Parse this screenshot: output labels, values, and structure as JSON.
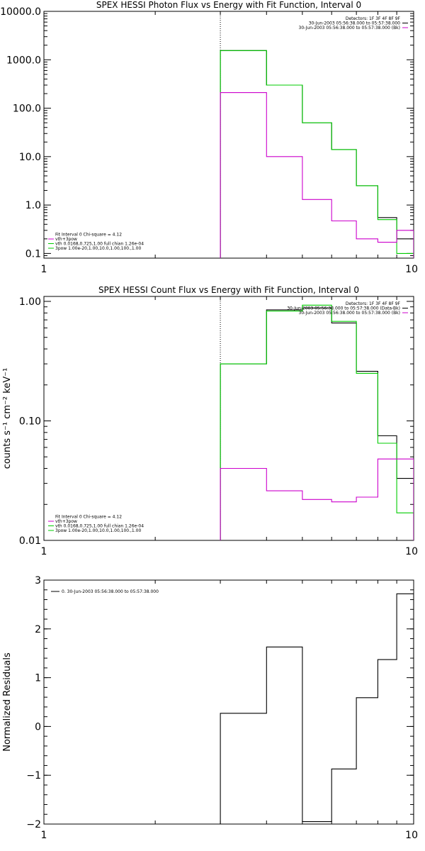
{
  "chart_data": [
    {
      "type": "line",
      "id": "photon",
      "title": "SPEX HESSI Photon Flux vs Energy with Fit Function, Interval 0",
      "xlabel": "",
      "ylabel": "",
      "xscale": "log",
      "yscale": "log",
      "xlim": [
        1,
        10
      ],
      "ylim": [
        0.08,
        10000
      ],
      "xticks": [
        {
          "v": 1,
          "label": "1"
        },
        {
          "v": 10,
          "label": "10"
        }
      ],
      "yticks": [
        {
          "v": 0.1,
          "label": "0.1"
        },
        {
          "v": 1,
          "label": "1.0"
        },
        {
          "v": 10,
          "label": "10.0"
        },
        {
          "v": 100,
          "label": "100.0"
        },
        {
          "v": 1000,
          "label": "1000.0"
        },
        {
          "v": 10000,
          "label": "10000.0"
        }
      ],
      "vline_x": 3,
      "legend_topright": [
        {
          "text": "Detectors: 1F 3F 4F 8F 9F",
          "color": "#000000"
        },
        {
          "text": "30-Jun-2003 05:56:38.000 to 05:57:38.000",
          "color": "#000000"
        },
        {
          "text": "30-Jun-2003 05:56:38.000 to 05:57:38.000 (Bk)",
          "color": "#cc00cc"
        }
      ],
      "legend_bottomleft": [
        {
          "text": "Fit Interval  0    Chi-square = 4.12",
          "color": "#000000"
        },
        {
          "text": "vth+3pow",
          "color": "#cc00cc"
        },
        {
          "text": "vth 0.0168,0.725,1.00  full chian 1.26e-04",
          "color": "#00cc00"
        },
        {
          "text": "3pow 1.00e-20,1.00,10.0,1.00,100.,1.00",
          "color": "#00cc00"
        }
      ],
      "series": [
        {
          "color": "#000000",
          "edges": [
            3,
            4,
            5,
            6,
            7,
            8,
            9,
            10
          ],
          "values": [
            1550,
            300,
            50,
            14,
            2.5,
            0.55,
            0.2
          ]
        },
        {
          "color": "#00cc00",
          "edges": [
            3,
            4,
            5,
            6,
            7,
            8,
            9,
            10
          ],
          "values": [
            1550,
            300,
            50,
            14,
            2.5,
            0.5,
            0.1
          ]
        },
        {
          "color": "#cc00cc",
          "edges": [
            3,
            4,
            5,
            6,
            7,
            8,
            9,
            10
          ],
          "values": [
            210,
            10,
            1.3,
            0.47,
            0.2,
            0.17,
            0.3
          ]
        }
      ]
    },
    {
      "type": "line",
      "id": "count",
      "title": "SPEX HESSI Count Flux vs Energy with Fit Function, Interval 0",
      "xlabel": "",
      "ylabel": "counts s⁻¹ cm⁻² keV⁻¹",
      "xscale": "log",
      "yscale": "log",
      "xlim": [
        1,
        10
      ],
      "ylim": [
        0.01,
        1.1
      ],
      "xticks": [
        {
          "v": 1,
          "label": "1"
        },
        {
          "v": 10,
          "label": "10"
        }
      ],
      "yticks": [
        {
          "v": 0.01,
          "label": "0.01"
        },
        {
          "v": 0.1,
          "label": "0.10"
        },
        {
          "v": 1,
          "label": "1.00"
        }
      ],
      "vline_x": 3,
      "legend_topright": [
        {
          "text": "Detectors: 1F 3F 4F 8F 9F",
          "color": "#000000"
        },
        {
          "text": "30-Jun-2003 05:56:38.000 to 05:57:38.000 (Data-Bk)",
          "color": "#000000"
        },
        {
          "text": "30-Jun-2003 05:56:38.000 to 05:57:38.000 (Bk)",
          "color": "#cc00cc"
        }
      ],
      "legend_bottomleft": [
        {
          "text": "Fit Interval  0    Chi-square = 4.12",
          "color": "#000000"
        },
        {
          "text": "vth+3pow",
          "color": "#cc00cc"
        },
        {
          "text": "vth 0.0168,0.725,1.00  full chian 1.26e-04",
          "color": "#00cc00"
        },
        {
          "text": "3pow 1.00e-20,1.00,10.0,1.00,100.,1.00",
          "color": "#00cc00"
        }
      ],
      "series": [
        {
          "color": "#000000",
          "edges": [
            3,
            4,
            5,
            6,
            7,
            8,
            9,
            10
          ],
          "values": [
            0.3,
            0.85,
            0.88,
            0.66,
            0.26,
            0.075,
            0.033
          ]
        },
        {
          "color": "#00cc00",
          "edges": [
            3,
            4,
            5,
            6,
            7,
            8,
            9,
            10
          ],
          "values": [
            0.3,
            0.83,
            0.93,
            0.68,
            0.25,
            0.065,
            0.017
          ]
        },
        {
          "color": "#cc00cc",
          "edges": [
            3,
            4,
            5,
            6,
            7,
            8,
            9,
            10
          ],
          "values": [
            0.04,
            0.026,
            0.022,
            0.021,
            0.023,
            0.048,
            0.048
          ]
        }
      ]
    },
    {
      "type": "line",
      "id": "resid",
      "title": "",
      "xlabel": "",
      "ylabel": "Normalized Residuals",
      "xscale": "log",
      "yscale": "linear",
      "xlim": [
        1,
        10
      ],
      "ylim": [
        -2,
        3
      ],
      "xticks": [
        {
          "v": 1,
          "label": "1"
        },
        {
          "v": 10,
          "label": "10"
        }
      ],
      "yticks": [
        {
          "v": -2,
          "label": "−2"
        },
        {
          "v": -1,
          "label": "−1"
        },
        {
          "v": 0,
          "label": "0"
        },
        {
          "v": 1,
          "label": "1"
        },
        {
          "v": 2,
          "label": "2"
        },
        {
          "v": 3,
          "label": "3"
        }
      ],
      "legend_topleft": [
        {
          "text": "0. 30-Jun-2003 05:56:38.000 to 05:57:38.000",
          "color": "#000000"
        }
      ],
      "series": [
        {
          "color": "#000000",
          "edges": [
            3,
            4,
            5,
            6,
            7,
            8,
            9,
            10
          ],
          "values": [
            0.27,
            1.63,
            -1.95,
            -0.87,
            0.59,
            1.37,
            2.72
          ]
        }
      ]
    }
  ]
}
